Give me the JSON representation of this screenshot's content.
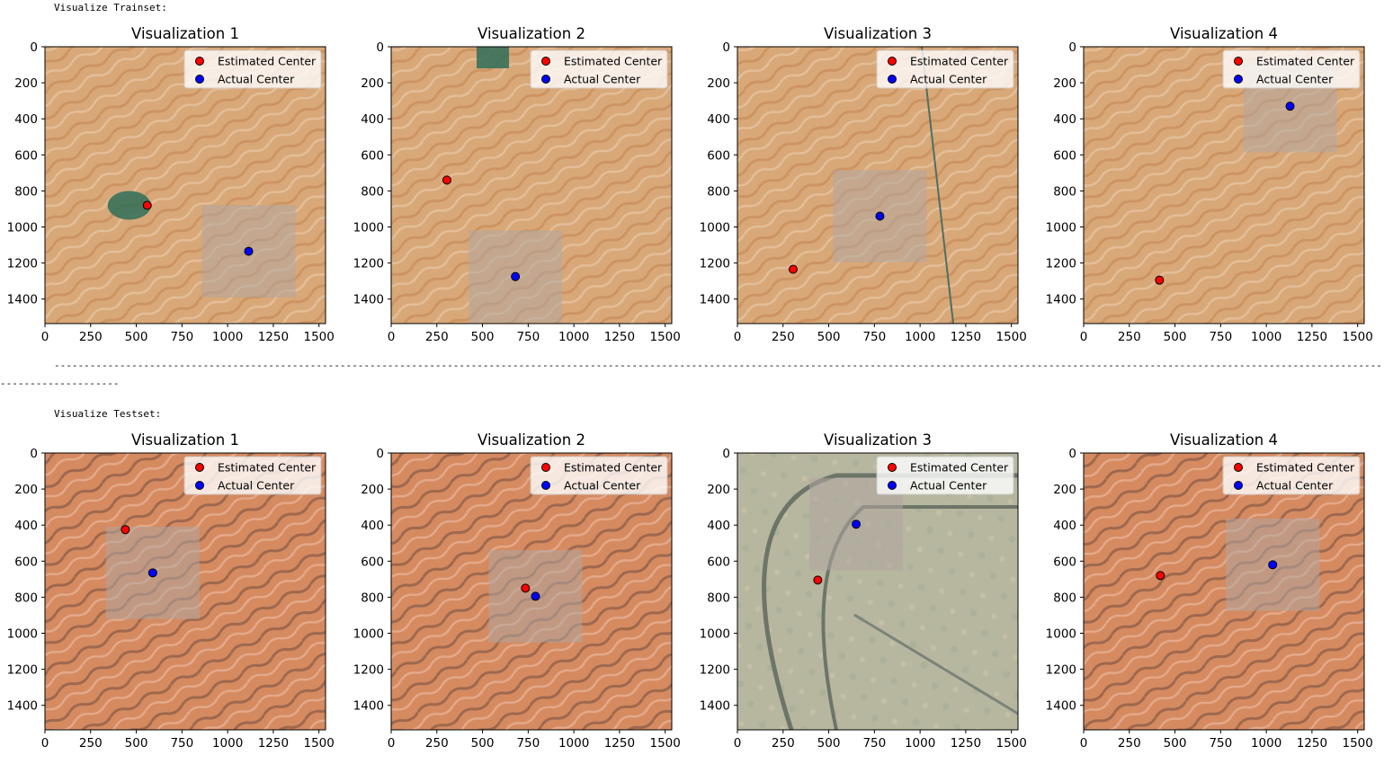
{
  "trainset_label": "Visualize Trainset:",
  "testset_label": "Visualize Testset:",
  "separator_line1": "------------------------------------------------------------------------------------------------------------------------------------------------------------------------------------------------------------------------------------------------------",
  "separator_line2": "--------------------",
  "colors": {
    "estimated": "#ff0000",
    "actual": "#0000ff",
    "sand": "#d9a878",
    "sand_light": "#e8c8a6",
    "sand_dark": "#c98d5a",
    "vegetation": "#2e6e58",
    "plain": "#b7b7a0",
    "patch": "#b0a6a0"
  },
  "legend": {
    "estimated_label": "Estimated Center",
    "actual_label": "Actual Center"
  },
  "axes": {
    "xlim": [
      0,
      1536
    ],
    "ylim_inverted": [
      1536,
      0
    ],
    "xticks": [
      "0",
      "250",
      "500",
      "750",
      "1000",
      "1250",
      "1500"
    ],
    "yticks": [
      "0",
      "200",
      "400",
      "600",
      "800",
      "1000",
      "1200",
      "1400"
    ]
  },
  "chart_data": [
    {
      "group": "trainset",
      "type": "scatter",
      "title": "Visualization 1",
      "terrain": "dunes",
      "series": [
        {
          "name": "Estimated Center",
          "x": [
            560
          ],
          "y": [
            880
          ]
        },
        {
          "name": "Actual Center",
          "x": [
            1115
          ],
          "y": [
            1135
          ]
        }
      ],
      "patch_center": [
        1115,
        1135
      ]
    },
    {
      "group": "trainset",
      "type": "scatter",
      "title": "Visualization 2",
      "terrain": "dunes",
      "series": [
        {
          "name": "Estimated Center",
          "x": [
            305
          ],
          "y": [
            740
          ]
        },
        {
          "name": "Actual Center",
          "x": [
            680
          ],
          "y": [
            1275
          ]
        }
      ],
      "patch_center": [
        680,
        1275
      ]
    },
    {
      "group": "trainset",
      "type": "scatter",
      "title": "Visualization 3",
      "terrain": "dunes-road",
      "series": [
        {
          "name": "Estimated Center",
          "x": [
            305
          ],
          "y": [
            1235
          ]
        },
        {
          "name": "Actual Center",
          "x": [
            780
          ],
          "y": [
            940
          ]
        }
      ],
      "patch_center": [
        780,
        940
      ]
    },
    {
      "group": "trainset",
      "type": "scatter",
      "title": "Visualization 4",
      "terrain": "dunes",
      "series": [
        {
          "name": "Estimated Center",
          "x": [
            415
          ],
          "y": [
            1295
          ]
        },
        {
          "name": "Actual Center",
          "x": [
            1130
          ],
          "y": [
            330
          ]
        }
      ],
      "patch_center": [
        1130,
        330
      ]
    },
    {
      "group": "testset",
      "type": "scatter",
      "title": "Visualization 1",
      "terrain": "red-dunes",
      "series": [
        {
          "name": "Estimated Center",
          "x": [
            440
          ],
          "y": [
            425
          ]
        },
        {
          "name": "Actual Center",
          "x": [
            590
          ],
          "y": [
            665
          ]
        }
      ],
      "patch_center": [
        590,
        665
      ]
    },
    {
      "group": "testset",
      "type": "scatter",
      "title": "Visualization 2",
      "terrain": "red-dunes",
      "series": [
        {
          "name": "Estimated Center",
          "x": [
            735
          ],
          "y": [
            750
          ]
        },
        {
          "name": "Actual Center",
          "x": [
            790
          ],
          "y": [
            795
          ]
        }
      ],
      "patch_center": [
        790,
        795
      ]
    },
    {
      "group": "testset",
      "type": "scatter",
      "title": "Visualization 3",
      "terrain": "plain-track",
      "series": [
        {
          "name": "Estimated Center",
          "x": [
            440
          ],
          "y": [
            705
          ]
        },
        {
          "name": "Actual Center",
          "x": [
            650
          ],
          "y": [
            395
          ]
        }
      ],
      "patch_center": [
        650,
        395
      ]
    },
    {
      "group": "testset",
      "type": "scatter",
      "title": "Visualization 4",
      "terrain": "red-dunes",
      "series": [
        {
          "name": "Estimated Center",
          "x": [
            420
          ],
          "y": [
            680
          ]
        },
        {
          "name": "Actual Center",
          "x": [
            1035
          ],
          "y": [
            620
          ]
        }
      ],
      "patch_center": [
        1035,
        620
      ]
    }
  ]
}
